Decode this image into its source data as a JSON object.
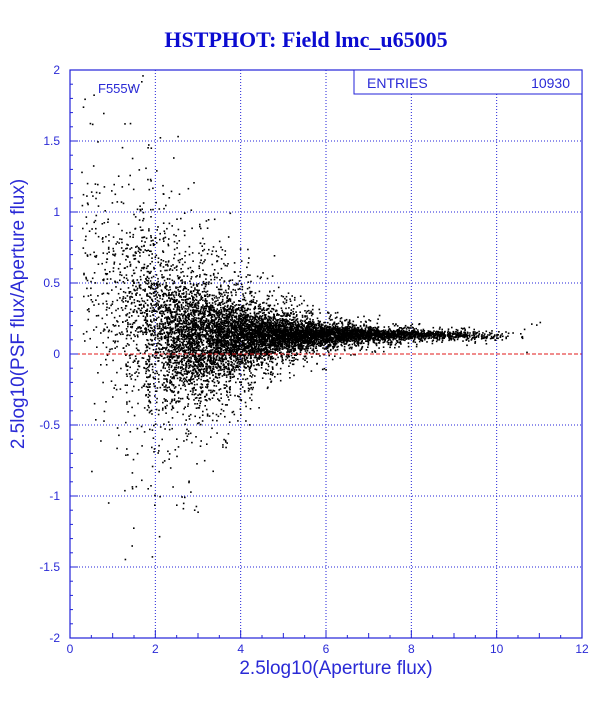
{
  "page_title": "HSTPHOT: Field lmc_u65005",
  "chart_data": {
    "type": "scatter",
    "title": "HSTPHOT: Field lmc_u65005",
    "xlabel": "2.5log10(Aperture flux)",
    "ylabel": "2.5log10(PSF flux/Aperture flux)",
    "xlim": [
      0,
      12
    ],
    "ylim": [
      -2,
      2
    ],
    "x_ticks": [
      "0",
      "2",
      "4",
      "6",
      "8",
      "10",
      "12"
    ],
    "y_ticks": [
      "-2",
      "-1.5",
      "-1",
      "-0.5",
      "0",
      "0.5",
      "1",
      "1.5",
      "2"
    ],
    "grid": true,
    "filter_label": "F555W",
    "stats": {
      "label": "ENTRIES",
      "value": "10930"
    },
    "reference_line": {
      "y": 0,
      "color": "#e01818",
      "style": "dashed"
    },
    "point_color": "#000000",
    "series": [
      {
        "density_profile": [
          {
            "x": 0.5,
            "mean": 0.6,
            "spread": 0.8,
            "count": 90
          },
          {
            "x": 1.0,
            "mean": 0.45,
            "spread": 0.72,
            "count": 160
          },
          {
            "x": 1.5,
            "mean": 0.3,
            "spread": 0.68,
            "count": 320
          },
          {
            "x": 2.0,
            "mean": 0.2,
            "spread": 0.62,
            "count": 560
          },
          {
            "x": 2.5,
            "mean": 0.14,
            "spread": 0.48,
            "count": 820
          },
          {
            "x": 3.0,
            "mean": 0.12,
            "spread": 0.4,
            "count": 980
          },
          {
            "x": 3.5,
            "mean": 0.12,
            "spread": 0.32,
            "count": 1000
          },
          {
            "x": 4.0,
            "mean": 0.12,
            "spread": 0.25,
            "count": 980
          },
          {
            "x": 4.5,
            "mean": 0.13,
            "spread": 0.18,
            "count": 900
          },
          {
            "x": 5.0,
            "mean": 0.14,
            "spread": 0.13,
            "count": 820
          },
          {
            "x": 5.5,
            "mean": 0.14,
            "spread": 0.1,
            "count": 720
          },
          {
            "x": 6.0,
            "mean": 0.14,
            "spread": 0.08,
            "count": 620
          },
          {
            "x": 6.5,
            "mean": 0.14,
            "spread": 0.06,
            "count": 520
          },
          {
            "x": 7.0,
            "mean": 0.14,
            "spread": 0.05,
            "count": 420
          },
          {
            "x": 7.5,
            "mean": 0.14,
            "spread": 0.04,
            "count": 330
          },
          {
            "x": 8.0,
            "mean": 0.14,
            "spread": 0.035,
            "count": 250
          },
          {
            "x": 8.5,
            "mean": 0.14,
            "spread": 0.03,
            "count": 180
          },
          {
            "x": 9.0,
            "mean": 0.14,
            "spread": 0.03,
            "count": 120
          },
          {
            "x": 9.5,
            "mean": 0.13,
            "spread": 0.03,
            "count": 70
          },
          {
            "x": 10.0,
            "mean": 0.13,
            "spread": 0.03,
            "count": 35
          },
          {
            "x": 10.5,
            "mean": 0.14,
            "spread": 0.05,
            "count": 8
          },
          {
            "x": 11.0,
            "mean": 0.2,
            "spread": 0.1,
            "count": 3
          }
        ]
      }
    ]
  }
}
